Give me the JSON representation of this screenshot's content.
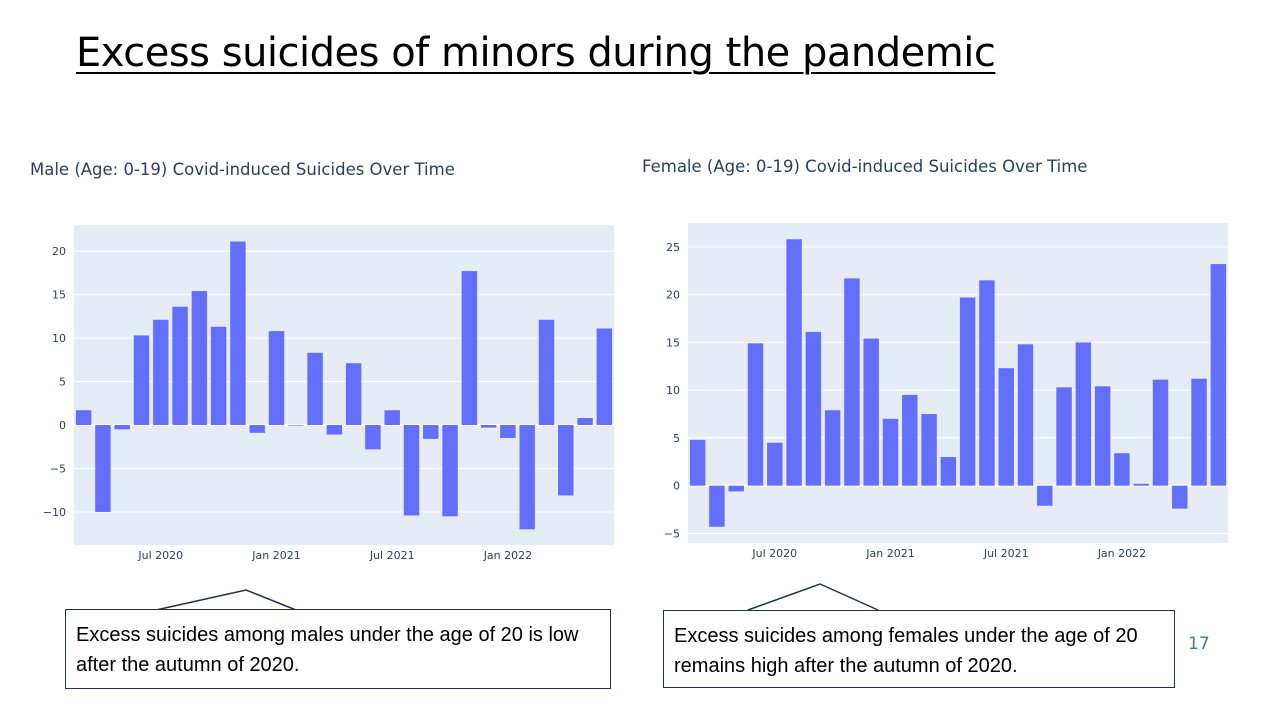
{
  "slide": {
    "title": "Excess suicides of minors during the pandemic",
    "page_number": "17",
    "bar_color": "#636efa",
    "plot_bg": "#e5ecf6"
  },
  "callouts": {
    "male": "Excess suicides among males under the age of 20 is low after the autumn of 2020.",
    "female": "Excess suicides among females under the age of 20 remains high after the autumn of 2020."
  },
  "chart_data": [
    {
      "type": "bar",
      "title": "Male (Age: 0-19) Covid-induced Suicides Over Time",
      "x": [
        "2020-03",
        "2020-04",
        "2020-05",
        "2020-06",
        "2020-07",
        "2020-08",
        "2020-09",
        "2020-10",
        "2020-11",
        "2020-12",
        "2021-01",
        "2021-02",
        "2021-03",
        "2021-04",
        "2021-05",
        "2021-06",
        "2021-07",
        "2021-08",
        "2021-09",
        "2021-10",
        "2021-11",
        "2021-12",
        "2022-01",
        "2022-02",
        "2022-03",
        "2022-04",
        "2022-05",
        "2022-06"
      ],
      "values": [
        1.7,
        -10.0,
        -0.5,
        10.3,
        12.1,
        13.6,
        15.4,
        11.3,
        21.1,
        -0.9,
        10.8,
        0.0,
        8.3,
        -1.1,
        7.1,
        -2.8,
        1.7,
        -10.4,
        -1.6,
        -10.5,
        17.7,
        -0.3,
        -1.5,
        -12.0,
        12.1,
        -8.1,
        0.8,
        11.1
      ],
      "x_ticks": [
        "Jul 2020",
        "Jan 2021",
        "Jul 2021",
        "Jan 2022"
      ],
      "y_ticks": [
        "20",
        "15",
        "10",
        "5",
        "0",
        "−5",
        "−10"
      ],
      "ylim": [
        -13.8,
        23
      ],
      "xlabel": "",
      "ylabel": ""
    },
    {
      "type": "bar",
      "title": "Female (Age: 0-19) Covid-induced Suicides Over Time",
      "x": [
        "2020-03",
        "2020-04",
        "2020-05",
        "2020-06",
        "2020-07",
        "2020-08",
        "2020-09",
        "2020-10",
        "2020-11",
        "2020-12",
        "2021-01",
        "2021-02",
        "2021-03",
        "2021-04",
        "2021-05",
        "2021-06",
        "2021-07",
        "2021-08",
        "2021-09",
        "2021-10",
        "2021-11",
        "2021-12",
        "2022-01",
        "2022-02",
        "2022-03",
        "2022-04",
        "2022-05",
        "2022-06"
      ],
      "values": [
        4.8,
        -4.3,
        -0.6,
        14.9,
        4.5,
        25.8,
        16.1,
        7.9,
        21.7,
        15.4,
        7.0,
        9.5,
        7.5,
        3.0,
        19.7,
        21.5,
        12.3,
        14.8,
        -2.1,
        10.3,
        15.0,
        10.4,
        3.4,
        0.2,
        11.1,
        -2.4,
        11.2,
        23.2
      ],
      "x_ticks": [
        "Jul 2020",
        "Jan 2021",
        "Jul 2021",
        "Jan 2022"
      ],
      "y_ticks": [
        "25",
        "20",
        "15",
        "10",
        "5",
        "0",
        "−5"
      ],
      "ylim": [
        -6,
        27.5
      ],
      "xlabel": "",
      "ylabel": ""
    }
  ]
}
